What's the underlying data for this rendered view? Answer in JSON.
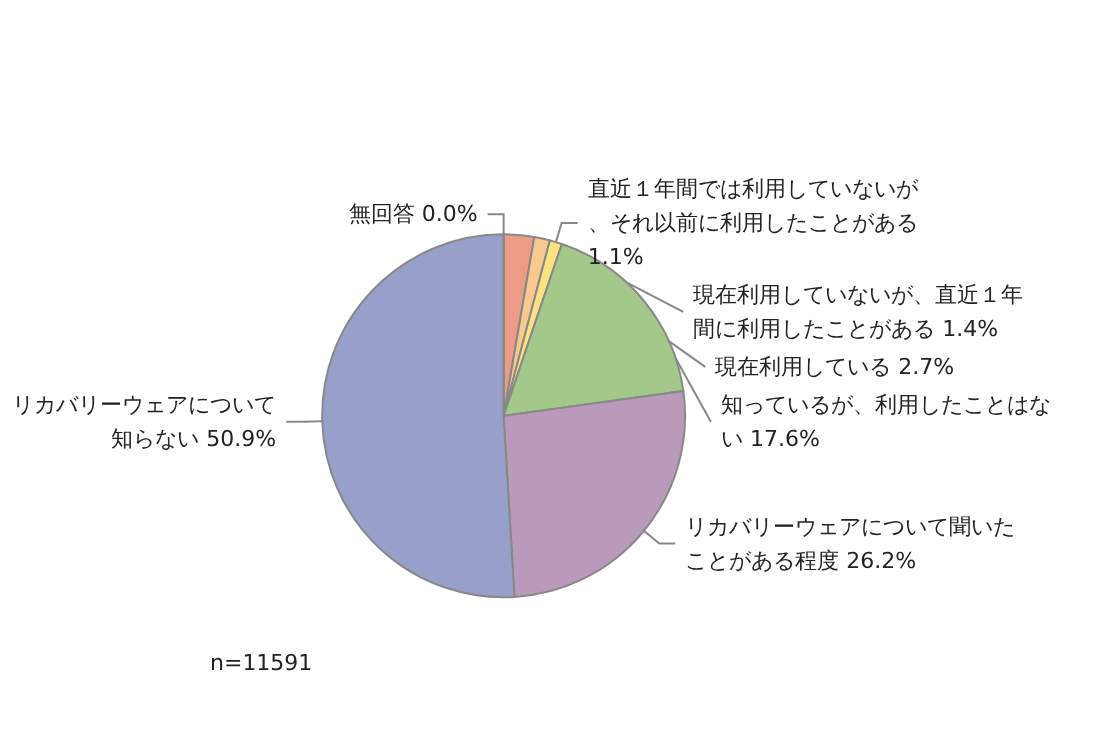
{
  "chart_data": {
    "type": "pie",
    "categories": [
      "現在利用している",
      "現在利用していないが、直近１年間に利用したことがある",
      "直近１年間では利用していないが、それ以前に利用したことがある",
      "知っているが、利用したことはない",
      "リカバリーウェアについて聞いたことがある程度",
      "リカバリーウェアについて知らない",
      "無回答"
    ],
    "values": [
      2.7,
      1.4,
      1.1,
      17.6,
      26.2,
      50.9,
      0.0
    ],
    "value_labels": [
      "2.7%",
      "1.4%",
      "1.1%",
      "17.6%",
      "26.2%",
      "50.9%",
      "0.0%"
    ],
    "colors": [
      "#ec9c86",
      "#f9c98d",
      "#fde27f",
      "#a3c98a",
      "#b99abb",
      "#97a0c8",
      "#ccccaa"
    ],
    "annotations": [
      "n=11591"
    ]
  }
}
